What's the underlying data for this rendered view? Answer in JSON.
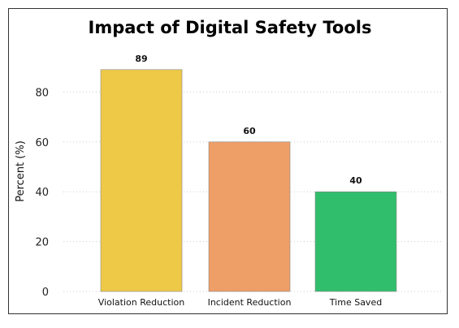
{
  "chart_data": {
    "type": "bar",
    "title": "Impact of Digital Safety Tools",
    "xlabel": "",
    "ylabel": "Percent (%)",
    "categories": [
      "Violation Reduction",
      "Incident Reduction",
      "Time Saved"
    ],
    "values": [
      89,
      60,
      40
    ],
    "data_labels": [
      "89",
      "60",
      "40"
    ],
    "colors": [
      "#EEC947",
      "#EE9E67",
      "#31BE6C"
    ],
    "ylim": [
      0,
      100
    ],
    "yticks": [
      0,
      20,
      40,
      60,
      80
    ],
    "grid": true,
    "legend": "none"
  }
}
